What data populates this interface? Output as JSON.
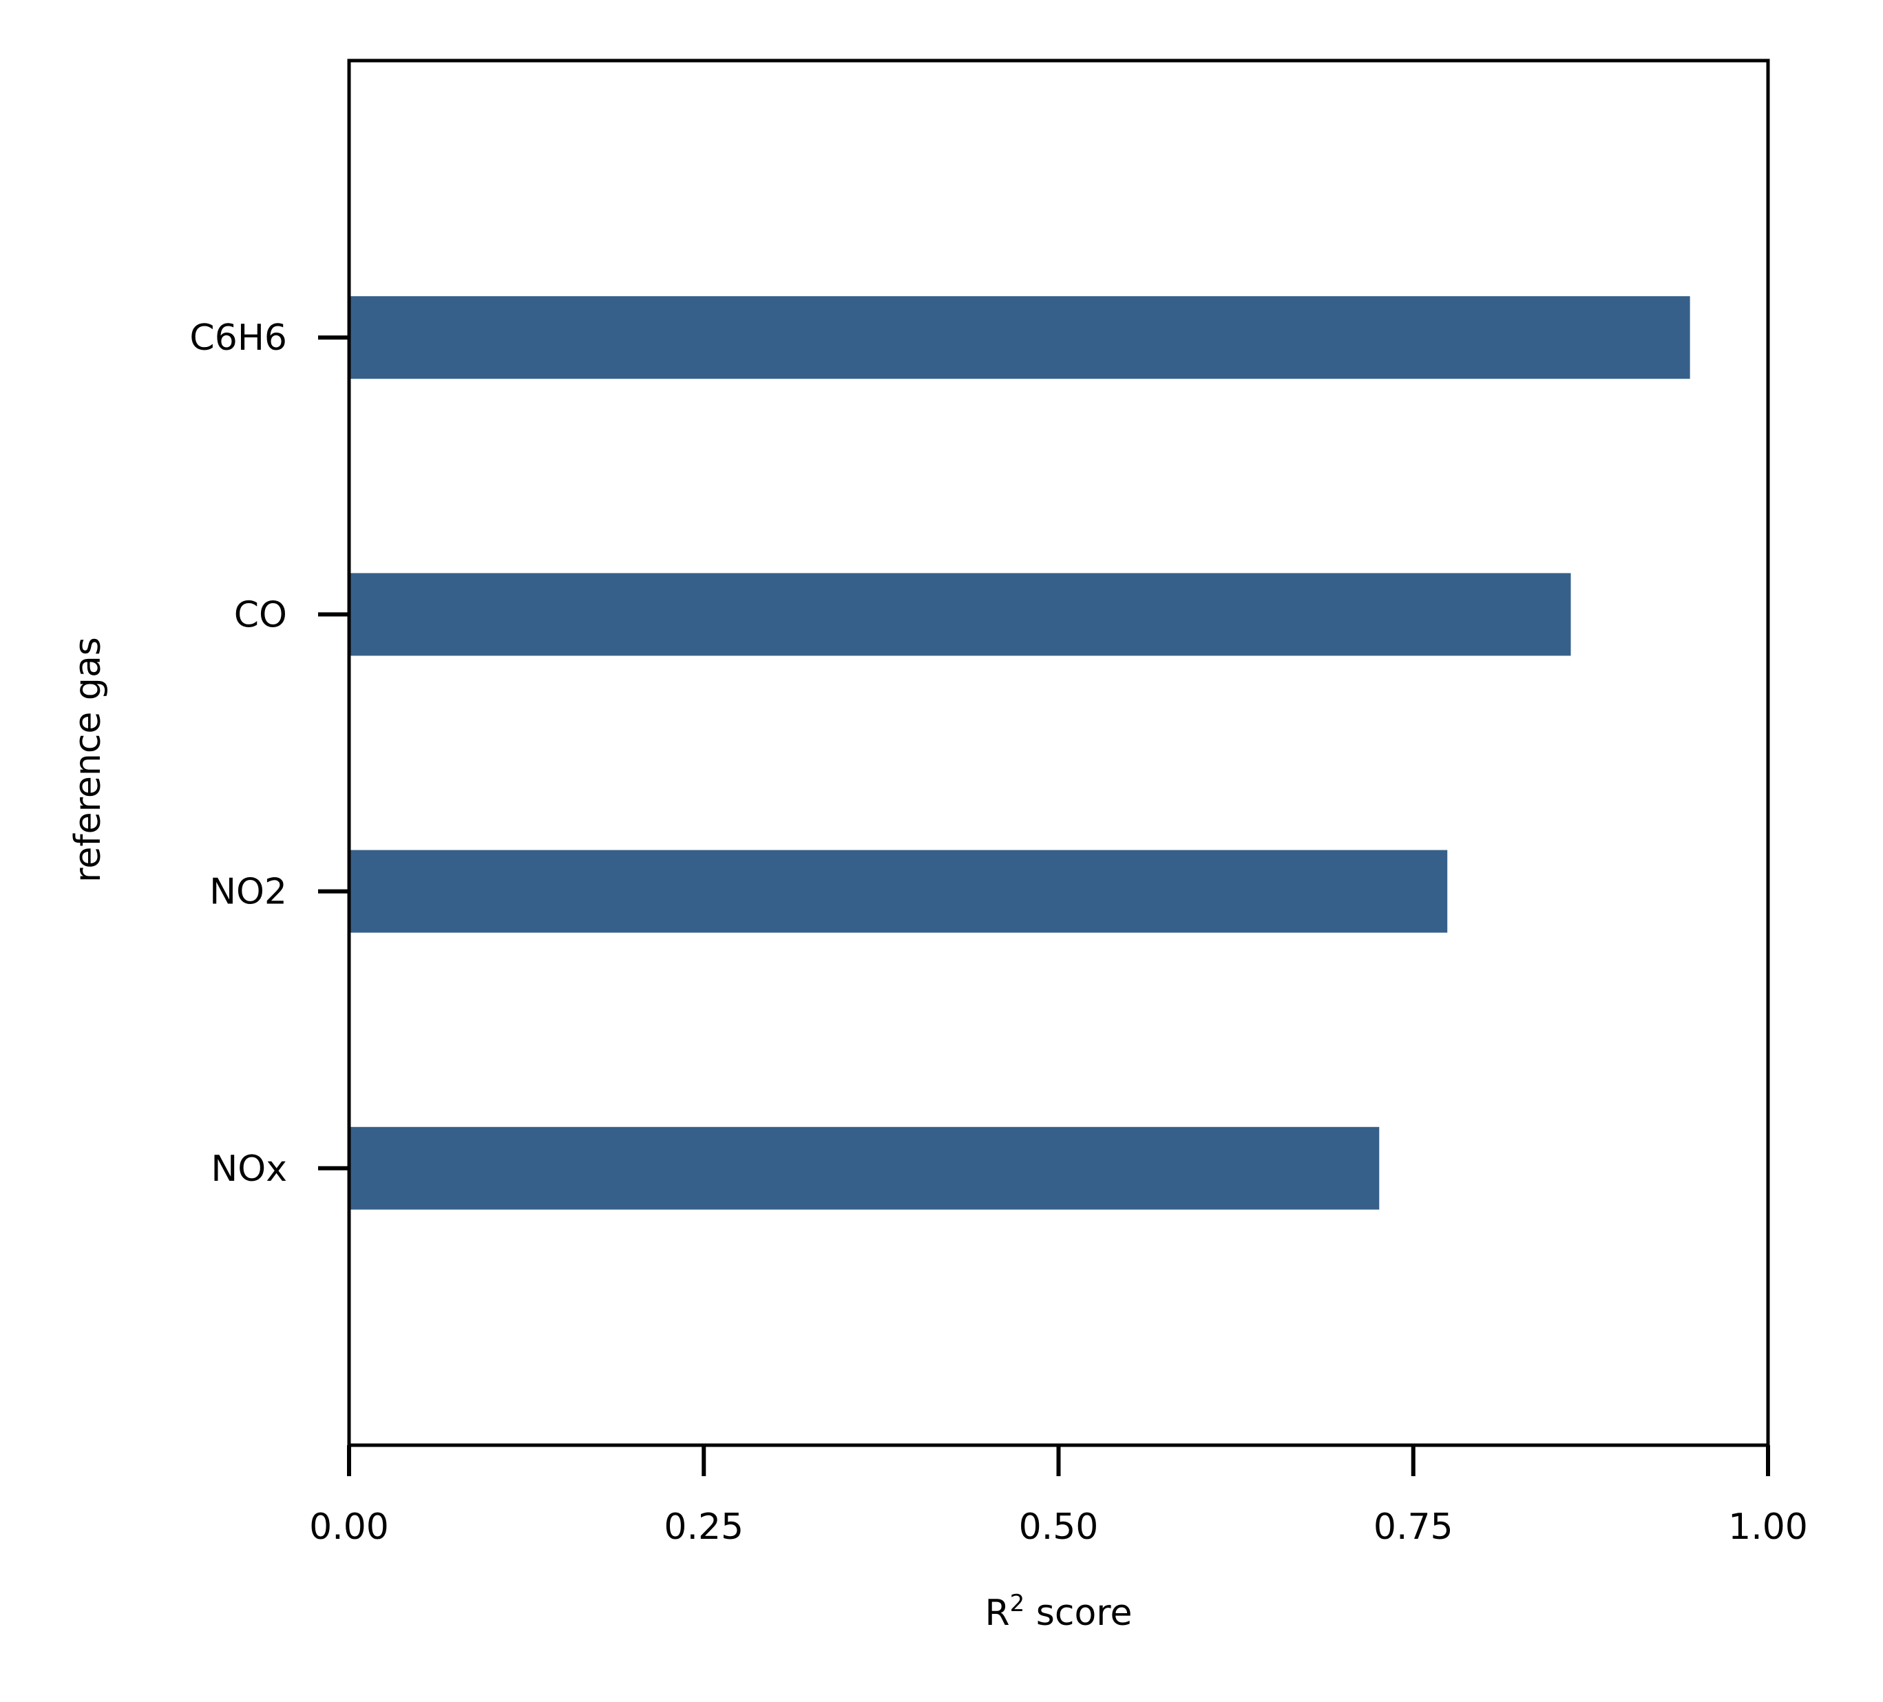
{
  "chart_data": {
    "type": "bar",
    "orientation": "horizontal",
    "categories": [
      "C6H6",
      "CO",
      "NO2",
      "NOx"
    ],
    "values": [
      0.945,
      0.861,
      0.774,
      0.726
    ],
    "title": "",
    "xlabel": "R",
    "xlabel_superscript": "2",
    "xlabel_suffix": " score",
    "ylabel": "reference gas",
    "xlim": [
      0,
      1
    ],
    "xticks": [
      0,
      0.25,
      0.5,
      0.75,
      1.0
    ],
    "xtick_labels": [
      "0.00",
      "0.25",
      "0.50",
      "0.75",
      "1.00"
    ],
    "grid": false,
    "legend": "none",
    "bar_color": "#36608a"
  }
}
